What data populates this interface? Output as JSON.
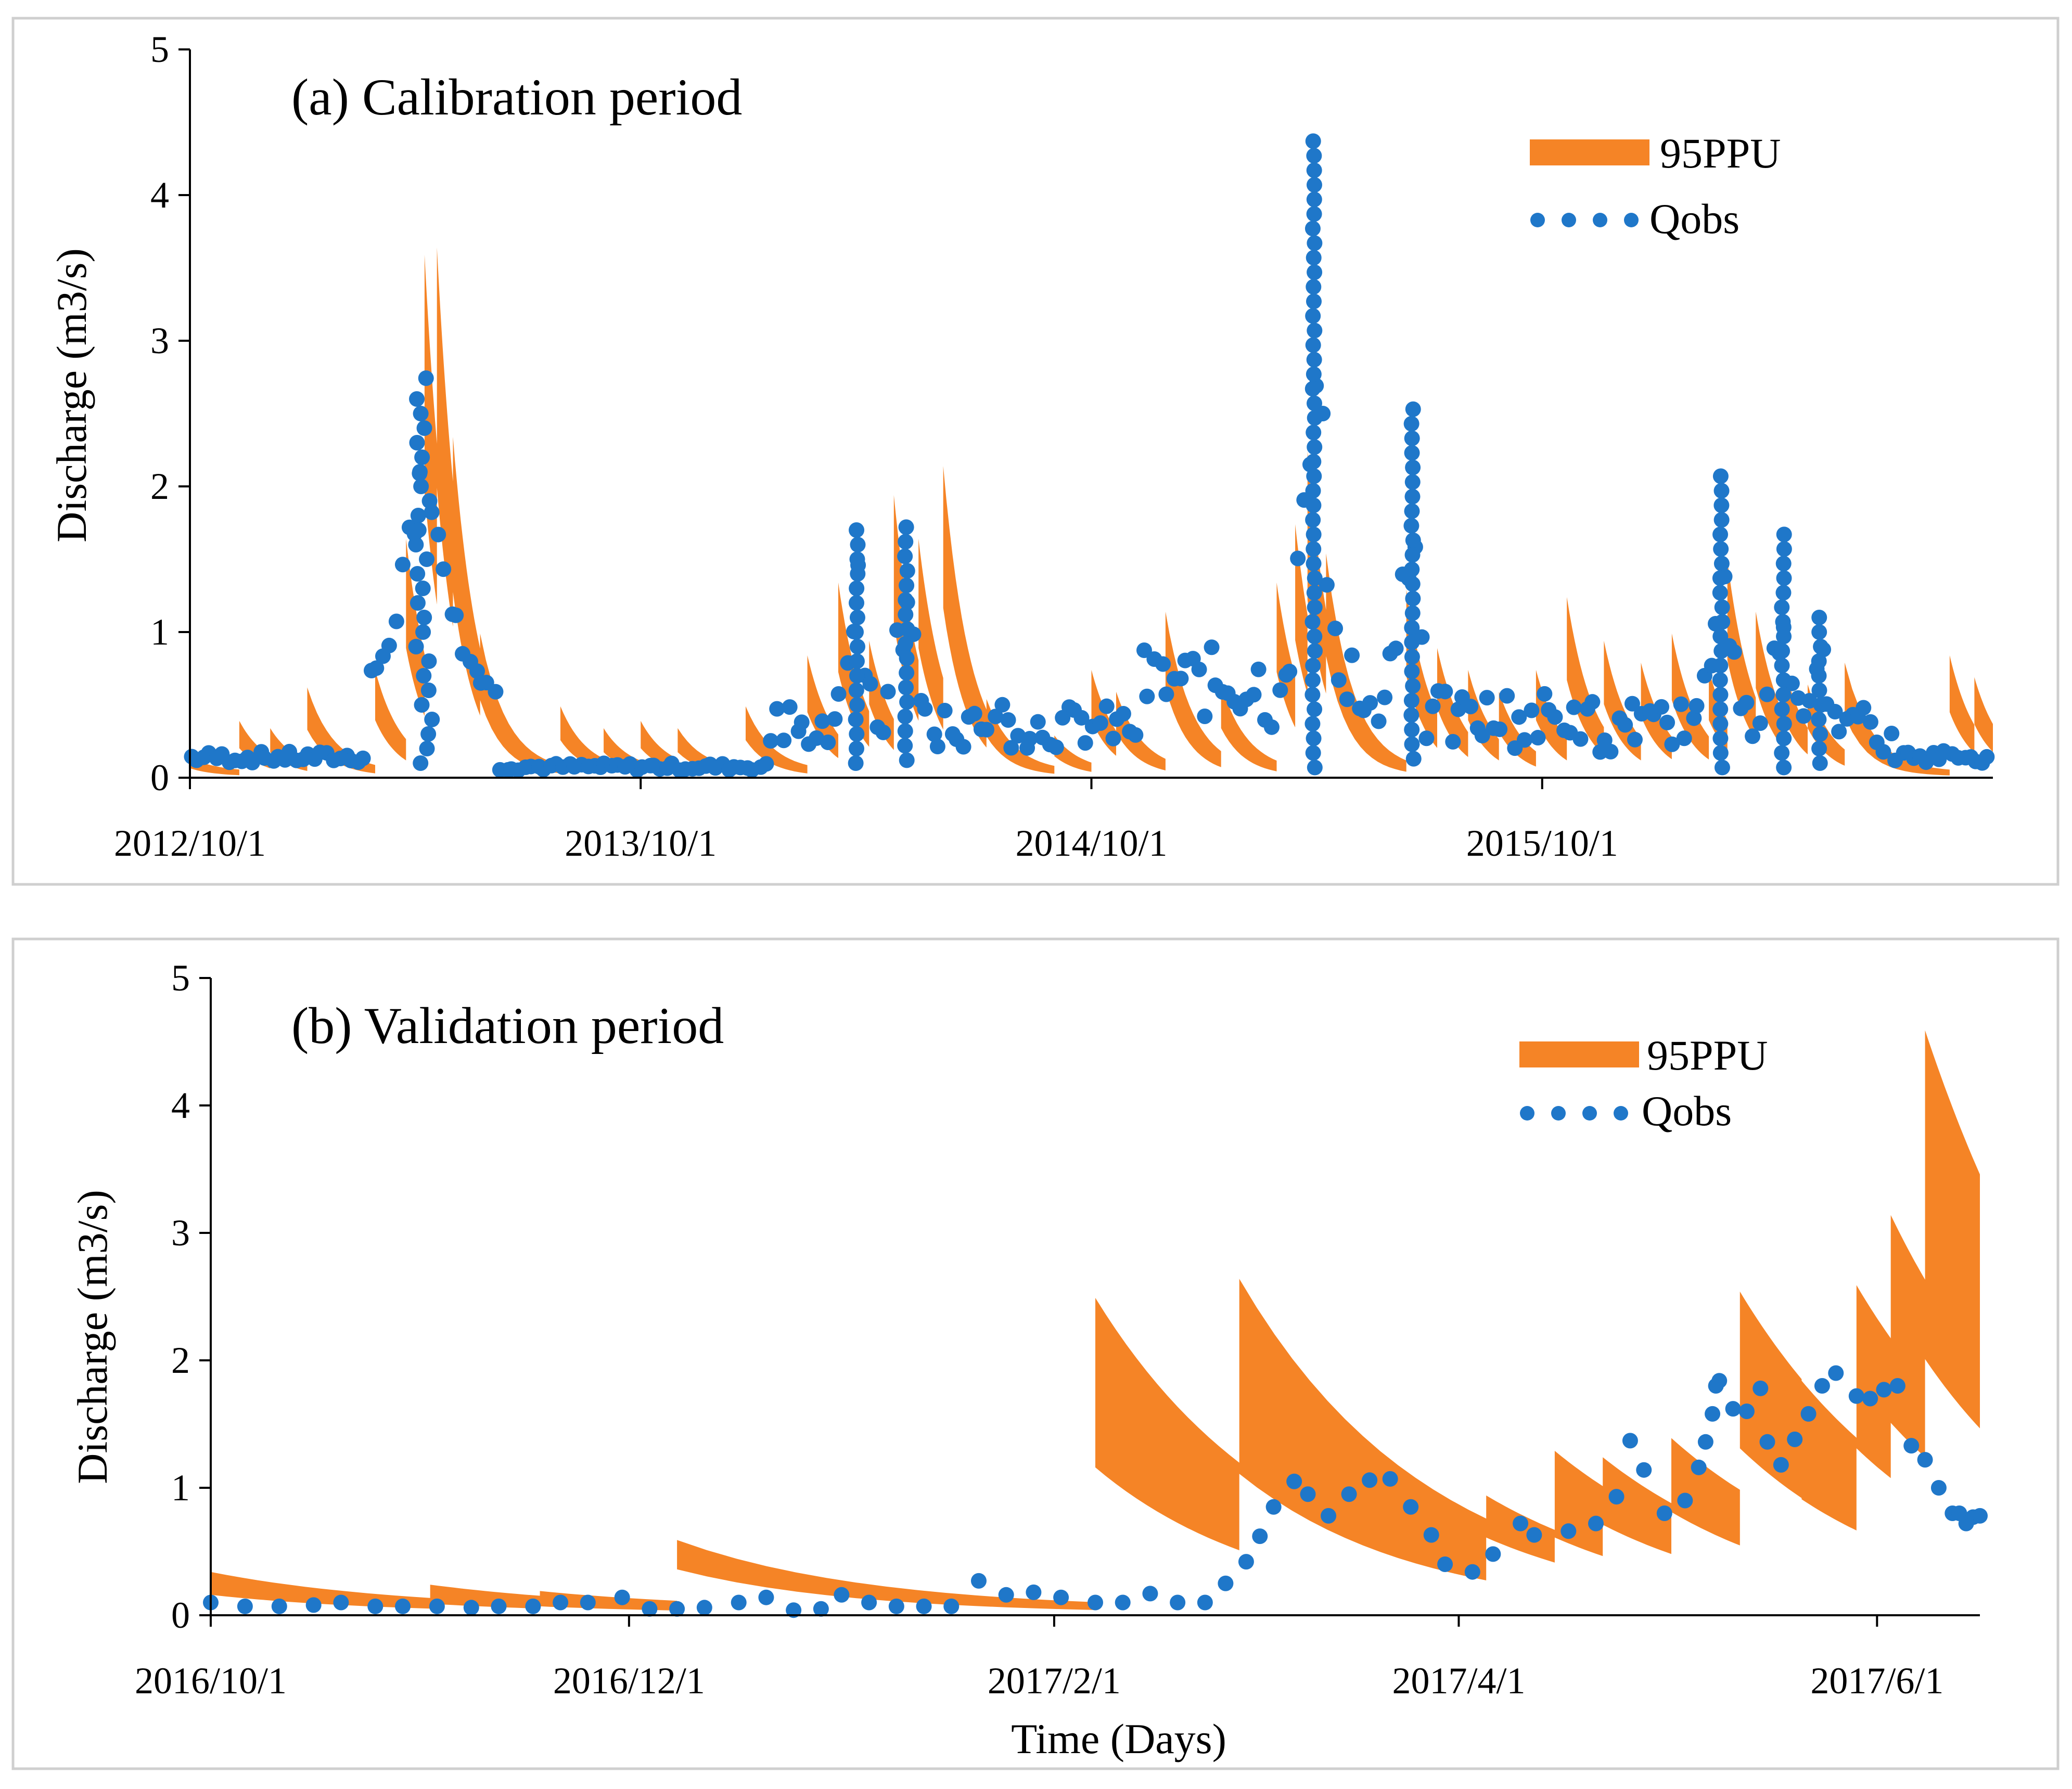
{
  "chart_data": [
    {
      "type": "area",
      "panel": "a",
      "title": "(a) Calibration period",
      "ylabel": "Discharge (m3/s)",
      "xlabel": "",
      "ylim": [
        0,
        5
      ],
      "yticks": [
        "0",
        "1",
        "2",
        "3",
        "4",
        "5"
      ],
      "xlim": [
        0,
        1460
      ],
      "xtick_labels": [
        "2012/10/1",
        "2013/10/1",
        "2014/10/1",
        "2015/10/1"
      ],
      "xtick_positions": [
        0,
        365,
        730,
        1095
      ],
      "legend_position": "top-right",
      "colors": {
        "band": "#F58426",
        "points": "#1F77C9"
      },
      "series": [
        {
          "name": "95PPU",
          "kind": "band",
          "events": [
            {
              "x": 0,
              "peak": 0.1
            },
            {
              "x": 40,
              "peak": 0.35
            },
            {
              "x": 65,
              "peak": 0.3
            },
            {
              "x": 95,
              "peak": 0.58
            },
            {
              "x": 150,
              "peak": 0.7
            },
            {
              "x": 175,
              "peak": 1.6
            },
            {
              "x": 190,
              "peak": 3.55
            },
            {
              "x": 200,
              "peak": 3.6
            },
            {
              "x": 213,
              "peak": 2.3
            },
            {
              "x": 235,
              "peak": 0.95
            },
            {
              "x": 300,
              "peak": 0.45
            },
            {
              "x": 335,
              "peak": 0.3
            },
            {
              "x": 365,
              "peak": 0.35
            },
            {
              "x": 395,
              "peak": 0.3
            },
            {
              "x": 450,
              "peak": 0.45
            },
            {
              "x": 500,
              "peak": 0.8
            },
            {
              "x": 525,
              "peak": 1.3
            },
            {
              "x": 550,
              "peak": 0.9
            },
            {
              "x": 570,
              "peak": 1.9
            },
            {
              "x": 590,
              "peak": 1.6
            },
            {
              "x": 610,
              "peak": 2.1
            },
            {
              "x": 645,
              "peak": 0.5
            },
            {
              "x": 700,
              "peak": 0.25
            },
            {
              "x": 730,
              "peak": 0.7
            },
            {
              "x": 750,
              "peak": 0.55
            },
            {
              "x": 790,
              "peak": 1.1
            },
            {
              "x": 835,
              "peak": 0.6
            },
            {
              "x": 880,
              "peak": 1.3
            },
            {
              "x": 895,
              "peak": 1.7
            },
            {
              "x": 905,
              "peak": 2.2
            },
            {
              "x": 920,
              "peak": 1.5
            },
            {
              "x": 985,
              "peak": 1.25
            },
            {
              "x": 1010,
              "peak": 0.85
            },
            {
              "x": 1035,
              "peak": 0.7
            },
            {
              "x": 1060,
              "peak": 0.55
            },
            {
              "x": 1090,
              "peak": 0.7
            },
            {
              "x": 1115,
              "peak": 1.2
            },
            {
              "x": 1145,
              "peak": 0.9
            },
            {
              "x": 1175,
              "peak": 0.75
            },
            {
              "x": 1200,
              "peak": 0.95
            },
            {
              "x": 1230,
              "peak": 0.7
            },
            {
              "x": 1245,
              "peak": 1.45
            },
            {
              "x": 1268,
              "peak": 1.1
            },
            {
              "x": 1290,
              "peak": 0.75
            },
            {
              "x": 1310,
              "peak": 0.6
            },
            {
              "x": 1340,
              "peak": 0.75
            },
            {
              "x": 1425,
              "peak": 0.8
            },
            {
              "x": 1445,
              "peak": 0.65
            }
          ]
        },
        {
          "name": "Qobs",
          "kind": "scatter",
          "segments": [
            {
              "x0": 0,
              "x1": 145,
              "base": 0.1,
              "amp": 0.08
            },
            {
              "x0": 145,
              "x1": 250,
              "peak_day": 190,
              "peak": 2.6,
              "base": 0.5
            },
            {
              "x0": 250,
              "x1": 470,
              "base": 0.05,
              "amp": 0.05
            },
            {
              "x0": 470,
              "x1": 660,
              "peaks": [
                [
                  540,
                  1.7
                ],
                [
                  580,
                  1.72
                ]
              ],
              "base": 0.35
            },
            {
              "x0": 660,
              "x1": 770,
              "base": 0.2,
              "amp": 0.3
            },
            {
              "x0": 770,
              "x1": 870,
              "base": 0.4,
              "amp": 0.5
            },
            {
              "x0": 870,
              "x1": 1000,
              "peaks": [
                [
                  910,
                  4.37
                ],
                [
                  990,
                  2.53
                ]
              ],
              "base": 0.6
            },
            {
              "x0": 1000,
              "x1": 1100,
              "base": 0.2,
              "amp": 0.4
            },
            {
              "x0": 1100,
              "x1": 1380,
              "peaks": [
                [
                  1240,
                  2.07
                ],
                [
                  1290,
                  1.67
                ],
                [
                  1320,
                  1.1
                ]
              ],
              "base": 0.35
            },
            {
              "x0": 1380,
              "x1": 1460,
              "base": 0.1,
              "amp": 0.1
            }
          ]
        }
      ]
    },
    {
      "type": "area",
      "panel": "b",
      "title": "(b) Validation period",
      "ylabel": "Discharge (m3/s)",
      "xlabel": "Time (Days)",
      "ylim": [
        0,
        5
      ],
      "yticks": [
        "0",
        "1",
        "2",
        "3",
        "4",
        "5"
      ],
      "xlim": [
        0,
        258
      ],
      "xtick_labels": [
        "2016/10/1",
        "2016/12/1",
        "2017/2/1",
        "2017/4/1",
        "2017/6/1"
      ],
      "xtick_positions": [
        0,
        61,
        123,
        182,
        243
      ],
      "legend_position": "top-right",
      "colors": {
        "band": "#F58426",
        "points": "#1F77C9"
      },
      "series": [
        {
          "name": "95PPU",
          "kind": "band",
          "events": [
            {
              "x": 0,
              "peak": 0.3,
              "low": 0.15
            },
            {
              "x": 32,
              "peak": 0.2,
              "low": 0.08
            },
            {
              "x": 48,
              "peak": 0.15,
              "low": 0.06
            },
            {
              "x": 68,
              "peak": 0.55,
              "low": 0.35
            },
            {
              "x": 129,
              "peak": 2.45,
              "low": 1.15
            },
            {
              "x": 150,
              "peak": 2.6,
              "low": 1.1
            },
            {
              "x": 186,
              "peak": 0.9,
              "low": 0.6
            },
            {
              "x": 196,
              "peak": 1.25,
              "low": 0.6
            },
            {
              "x": 203,
              "peak": 1.2,
              "low": 0.7
            },
            {
              "x": 213,
              "peak": 1.35,
              "low": 0.8
            },
            {
              "x": 223,
              "peak": 2.5,
              "low": 1.3
            },
            {
              "x": 232,
              "peak": 1.8,
              "low": 0.9
            },
            {
              "x": 240,
              "peak": 2.55,
              "low": 1.3
            },
            {
              "x": 245,
              "peak": 3.1,
              "low": 1.5
            },
            {
              "x": 250,
              "peak": 4.55,
              "low": 2.0
            }
          ]
        },
        {
          "name": "Qobs",
          "kind": "scatter",
          "points": [
            [
              0,
              0.1
            ],
            [
              5,
              0.07
            ],
            [
              10,
              0.07
            ],
            [
              15,
              0.08
            ],
            [
              19,
              0.1
            ],
            [
              24,
              0.07
            ],
            [
              28,
              0.07
            ],
            [
              33,
              0.07
            ],
            [
              38,
              0.06
            ],
            [
              42,
              0.07
            ],
            [
              47,
              0.07
            ],
            [
              51,
              0.1
            ],
            [
              55,
              0.1
            ],
            [
              60,
              0.14
            ],
            [
              64,
              0.05
            ],
            [
              68,
              0.05
            ],
            [
              72,
              0.06
            ],
            [
              77,
              0.1
            ],
            [
              81,
              0.14
            ],
            [
              85,
              0.04
            ],
            [
              89,
              0.05
            ],
            [
              92,
              0.16
            ],
            [
              96,
              0.1
            ],
            [
              100,
              0.07
            ],
            [
              104,
              0.07
            ],
            [
              108,
              0.07
            ],
            [
              112,
              0.27
            ],
            [
              116,
              0.16
            ],
            [
              120,
              0.18
            ],
            [
              124,
              0.14
            ],
            [
              129,
              0.1
            ],
            [
              133,
              0.1
            ],
            [
              137,
              0.17
            ],
            [
              141,
              0.1
            ],
            [
              145,
              0.1
            ],
            [
              148,
              0.25
            ],
            [
              151,
              0.42
            ],
            [
              153,
              0.62
            ],
            [
              155,
              0.85
            ],
            [
              158,
              1.05
            ],
            [
              160,
              0.95
            ],
            [
              163,
              0.78
            ],
            [
              166,
              0.95
            ],
            [
              169,
              1.06
            ],
            [
              172,
              1.07
            ],
            [
              175,
              0.85
            ],
            [
              178,
              0.63
            ],
            [
              180,
              0.4
            ],
            [
              184,
              0.34
            ],
            [
              187,
              0.48
            ],
            [
              191,
              0.72
            ],
            [
              193,
              0.63
            ],
            [
              198,
              0.66
            ],
            [
              202,
              0.72
            ],
            [
              205,
              0.93
            ],
            [
              207,
              1.37
            ],
            [
              209,
              1.14
            ],
            [
              212,
              0.8
            ],
            [
              215,
              0.9
            ],
            [
              217,
              1.16
            ],
            [
              218,
              1.36
            ],
            [
              219,
              1.58
            ],
            [
              219.5,
              1.8
            ],
            [
              220,
              1.84
            ],
            [
              222,
              1.62
            ],
            [
              224,
              1.6
            ],
            [
              226,
              1.78
            ],
            [
              227,
              1.36
            ],
            [
              229,
              1.18
            ],
            [
              231,
              1.38
            ],
            [
              233,
              1.58
            ],
            [
              235,
              1.8
            ],
            [
              237,
              1.9
            ],
            [
              240,
              1.72
            ],
            [
              242,
              1.7
            ],
            [
              244,
              1.77
            ],
            [
              246,
              1.8
            ],
            [
              248,
              1.33
            ],
            [
              250,
              1.22
            ],
            [
              252,
              1.0
            ],
            [
              254,
              0.8
            ],
            [
              255,
              0.8
            ],
            [
              256,
              0.72
            ],
            [
              257,
              0.77
            ],
            [
              258,
              0.78
            ]
          ]
        }
      ]
    }
  ]
}
